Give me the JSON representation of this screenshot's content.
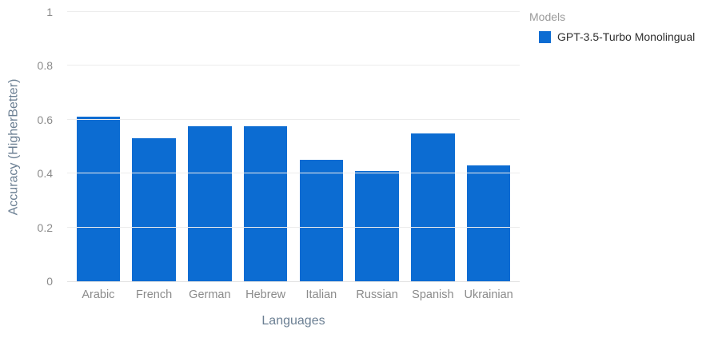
{
  "chart_data": {
    "type": "bar",
    "title": "",
    "categories": [
      "Arabic",
      "French",
      "German",
      "Hebrew",
      "Italian",
      "Russian",
      "Spanish",
      "Ukrainian"
    ],
    "values": [
      0.61,
      0.53,
      0.575,
      0.575,
      0.45,
      0.41,
      0.55,
      0.43
    ],
    "xlabel": "Languages",
    "ylabel": "Accuracy (HigherBetter)",
    "ylim": [
      0,
      1
    ],
    "yticks": [
      0,
      0.2,
      0.4,
      0.6,
      0.8,
      1
    ],
    "grid": "horizontal",
    "legend_position": "top-right",
    "bar_color": "#0c6cd2"
  },
  "legend": {
    "title": "Models",
    "items": [
      {
        "label": "GPT-3.5-Turbo Monolingual",
        "color": "#0c6cd2"
      }
    ]
  }
}
